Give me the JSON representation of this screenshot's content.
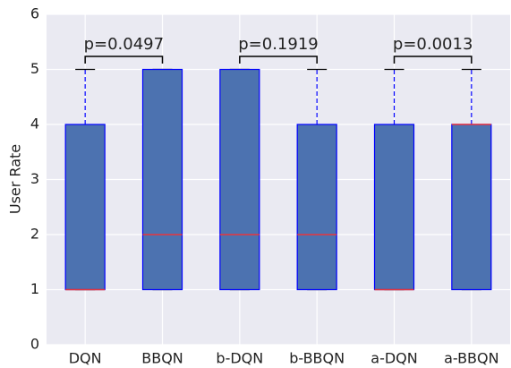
{
  "chart_data": {
    "type": "box",
    "ylabel": "User Rate",
    "categories": [
      "DQN",
      "BBQN",
      "b-DQN",
      "b-BBQN",
      "a-DQN",
      "a-BBQN"
    ],
    "boxes": [
      {
        "whislo": 1,
        "q1": 1,
        "med": 1,
        "q3": 4,
        "whishi": 5
      },
      {
        "whislo": 1,
        "q1": 1,
        "med": 2,
        "q3": 5,
        "whishi": 5
      },
      {
        "whislo": 1,
        "q1": 1,
        "med": 2,
        "q3": 5,
        "whishi": 5
      },
      {
        "whislo": 1,
        "q1": 1,
        "med": 2,
        "q3": 4,
        "whishi": 5
      },
      {
        "whislo": 1,
        "q1": 1,
        "med": 1,
        "q3": 4,
        "whishi": 5
      },
      {
        "whislo": 1,
        "q1": 1,
        "med": 4,
        "q3": 4,
        "whishi": 5
      }
    ],
    "color": "#4c72b0",
    "edge_color": "#0000ff",
    "median_color": "#e8343c",
    "annotations": [
      "p=0.0497",
      "p=0.1919",
      "p=0.0013"
    ],
    "ylim": [
      0,
      6
    ],
    "yticks": [
      0,
      1,
      2,
      3,
      4,
      5,
      6
    ],
    "grid": true
  }
}
